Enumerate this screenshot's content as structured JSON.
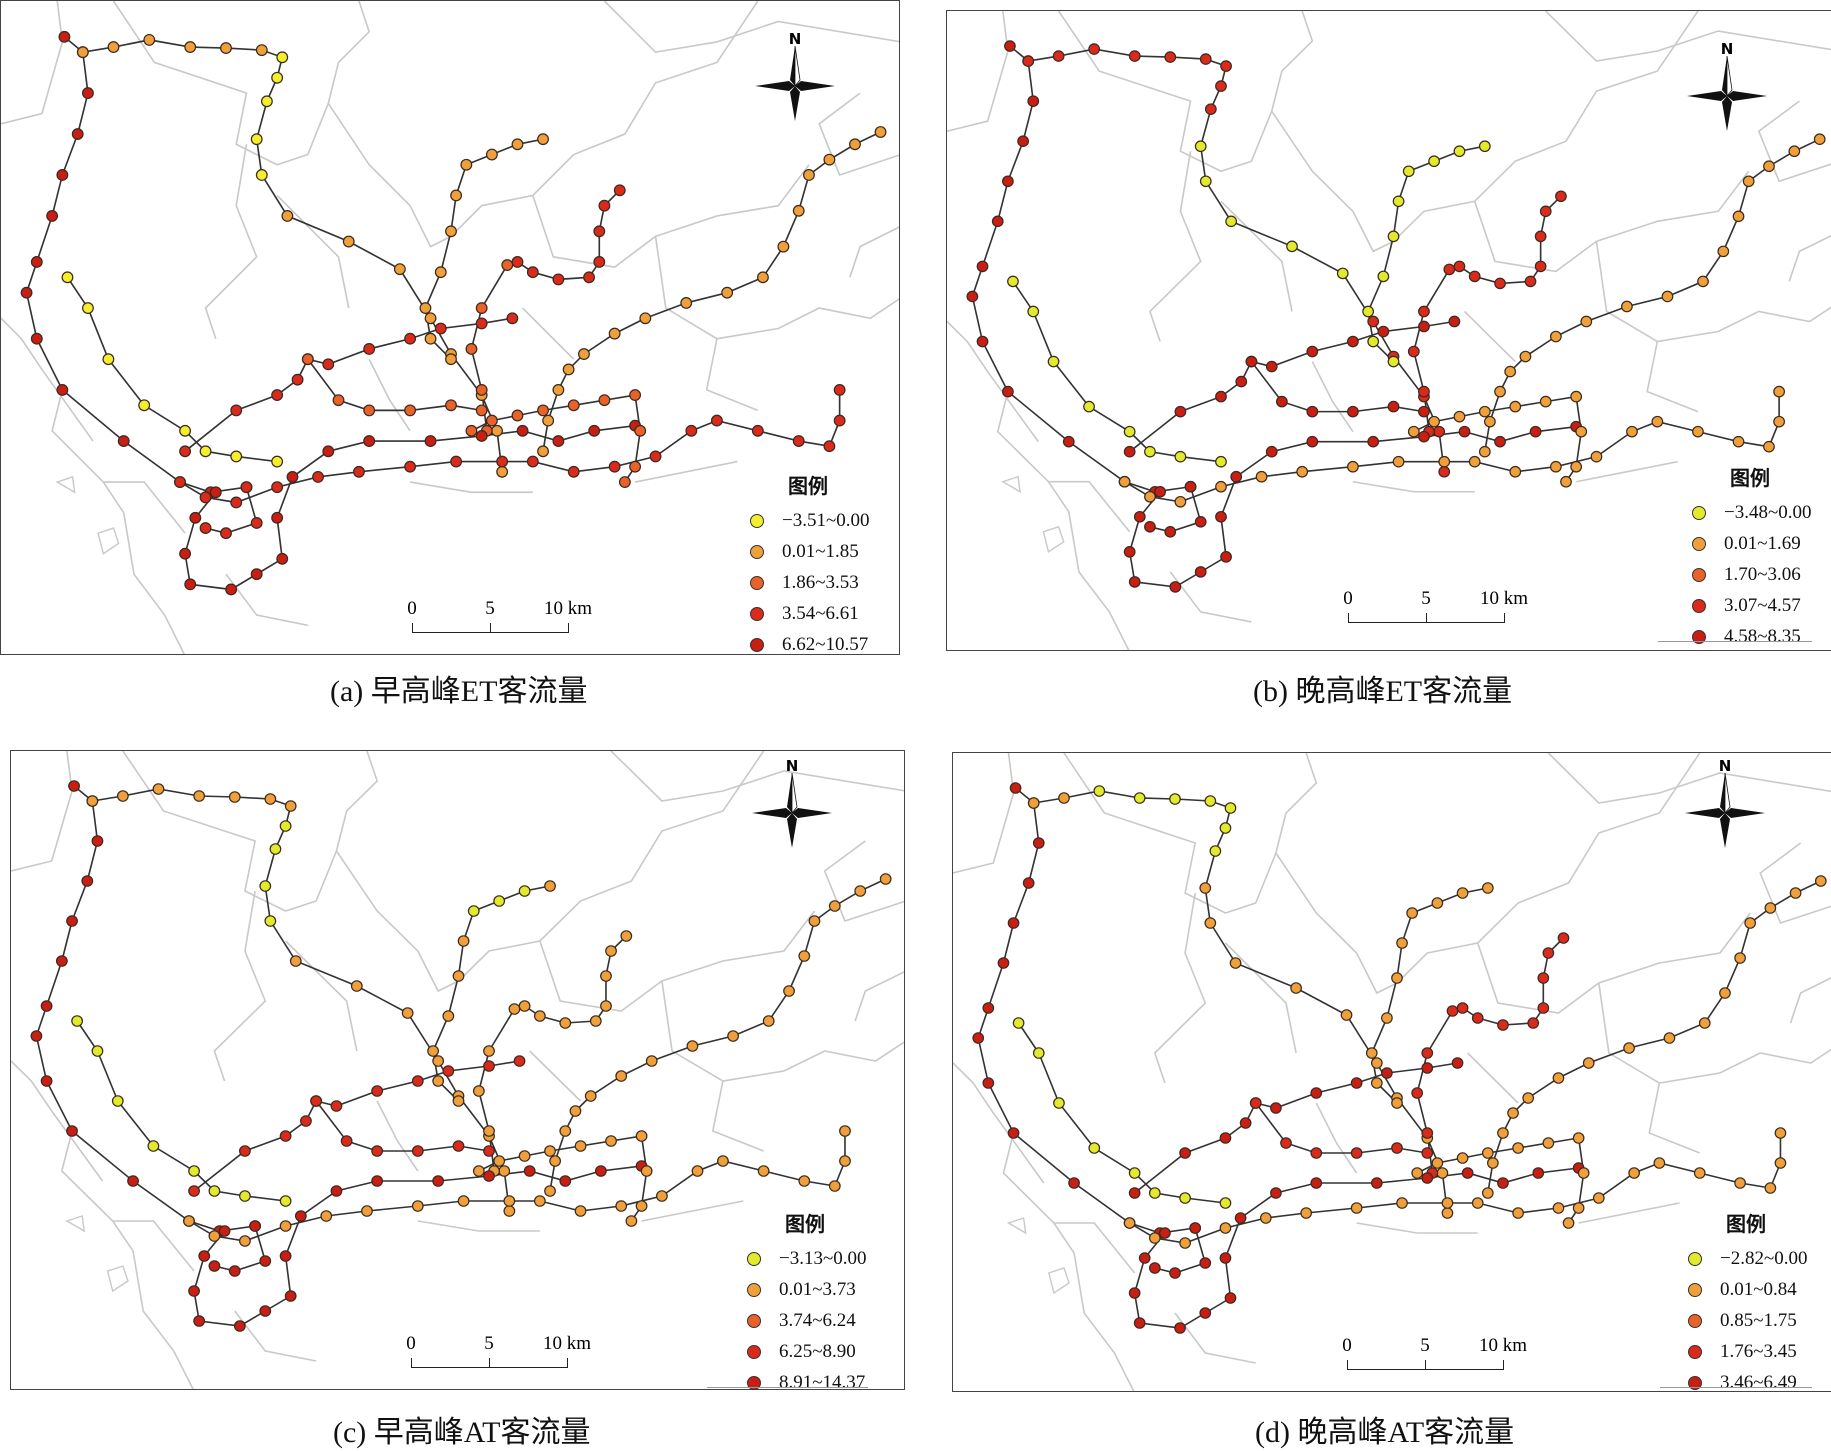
{
  "colors": {
    "yellow": "#f4ee2c",
    "light_orange": "#f0a03a",
    "orange": "#e8622a",
    "red": "#d92a1c",
    "deep_red": "#c81e14",
    "boundary": "#c9c9c9",
    "line": "#333333"
  },
  "common": {
    "legend_title": "图例",
    "north_label": "N",
    "scale_ticks": [
      "0",
      "5",
      "10 km"
    ]
  },
  "panels": [
    {
      "caption": "(a) 早高峰ET客流量",
      "legend": [
        {
          "label": "−3.51~0.00",
          "color": "#f4ee2c"
        },
        {
          "label": "0.01~1.85",
          "color": "#f0a03a"
        },
        {
          "label": "1.86~3.53",
          "color": "#e8622a"
        },
        {
          "label": "3.54~6.61",
          "color": "#d92a1c"
        },
        {
          "label": "6.62~10.57",
          "color": "#c81e14"
        }
      ]
    },
    {
      "caption": "(b) 晚高峰ET客流量",
      "legend": [
        {
          "label": "−3.48~0.00",
          "color": "#e2ea2c"
        },
        {
          "label": "0.01~1.69",
          "color": "#f0a03a"
        },
        {
          "label": "1.70~3.06",
          "color": "#e8622a"
        },
        {
          "label": "3.07~4.57",
          "color": "#d92a1c"
        },
        {
          "label": "4.58~8.35",
          "color": "#c81e14"
        }
      ]
    },
    {
      "caption": "(c) 早高峰AT客流量",
      "legend": [
        {
          "label": "−3.13~0.00",
          "color": "#e2ea2c"
        },
        {
          "label": "0.01~3.73",
          "color": "#f0a03a"
        },
        {
          "label": "3.74~6.24",
          "color": "#e8622a"
        },
        {
          "label": "6.25~8.90",
          "color": "#d92a1c"
        },
        {
          "label": "8.91~14.37",
          "color": "#c81e14"
        }
      ]
    },
    {
      "caption": "(d) 晚高峰AT客流量",
      "legend": [
        {
          "label": "−2.82~0.00",
          "color": "#e2ea2c"
        },
        {
          "label": "0.01~0.84",
          "color": "#f0a03a"
        },
        {
          "label": "0.85~1.75",
          "color": "#e8622a"
        },
        {
          "label": "1.76~3.45",
          "color": "#d92a1c"
        },
        {
          "label": "3.46~6.49",
          "color": "#c81e14"
        }
      ]
    }
  ]
}
